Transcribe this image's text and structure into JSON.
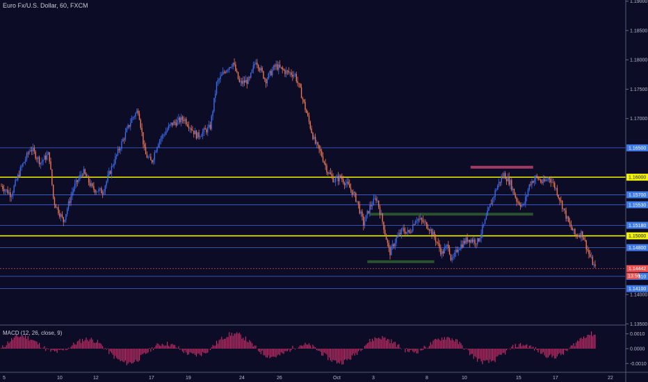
{
  "header": {
    "title": "Euro Fx/U.S. Dollar, 60, FXCM"
  },
  "macd": {
    "label": "MACD (12, 26, close, 9)",
    "tick_labels": [
      "0.0010",
      "0.0000",
      "-0.0010"
    ],
    "tick_values": [
      0.001,
      0.0,
      -0.001
    ],
    "color": "#d0306a"
  },
  "price_axis": {
    "tick_labels": [
      "1.19000",
      "1.18500",
      "1.18000",
      "1.17500",
      "1.17000",
      "1.14000",
      "1.13500"
    ],
    "tick_values": [
      1.19,
      1.185,
      1.18,
      1.175,
      1.17,
      1.14,
      1.135
    ],
    "range": [
      1.1348,
      1.1902
    ]
  },
  "levels": [
    {
      "label": "1.16500",
      "value": 1.165,
      "kind": "blue"
    },
    {
      "label": "1.16000",
      "value": 1.16,
      "kind": "yellow"
    },
    {
      "label": "1.15700",
      "value": 1.157,
      "kind": "blue"
    },
    {
      "label": "1.15530",
      "value": 1.1553,
      "kind": "blue"
    },
    {
      "label": "1.15180",
      "value": 1.1518,
      "kind": "blue"
    },
    {
      "label": "1.15000",
      "value": 1.15,
      "kind": "yellow"
    },
    {
      "label": "1.14800",
      "value": 1.148,
      "kind": "blue"
    },
    {
      "label": "1.14310",
      "value": 1.1431,
      "kind": "blue"
    },
    {
      "label": "1.14100",
      "value": 1.141,
      "kind": "blue"
    }
  ],
  "current_price": {
    "label": "1.14442",
    "value": 1.14442,
    "countdown": "13:56"
  },
  "time_axis": {
    "labels": [
      "5",
      "10",
      "12",
      "17",
      "19",
      "24",
      "26",
      "Oct",
      "3",
      "8",
      "10",
      "15",
      "17",
      "22"
    ]
  },
  "zones": [
    {
      "kind": "resistance",
      "x_start": 0.752,
      "x_end": 0.852,
      "price": 1.1617
    },
    {
      "kind": "support",
      "x_start": 0.591,
      "x_end": 0.852,
      "price": 1.1537
    },
    {
      "kind": "support",
      "x_start": 0.587,
      "x_end": 0.694,
      "price": 1.1456
    }
  ],
  "colors": {
    "background": "#0c0c27",
    "up_candle": "#3d6df0",
    "down_candle": "#f07850",
    "blue_line": "#4d79ff",
    "yellow_line": "#f5f500",
    "resistance_zone": "#b0406a",
    "support_zone": "#2e5a2e",
    "axis_text": "#b8bcc8",
    "current_price": "#f05050"
  },
  "chart_data": {
    "type": "candlestick",
    "symbol": "Euro Fx/U.S. Dollar",
    "interval": "60",
    "source": "FXCM",
    "ylim": [
      1.1348,
      1.1902
    ],
    "price_path": [
      [
        0.0,
        1.1585
      ],
      [
        0.015,
        1.157
      ],
      [
        0.03,
        1.1615
      ],
      [
        0.045,
        1.165
      ],
      [
        0.06,
        1.1625
      ],
      [
        0.073,
        1.164
      ],
      [
        0.08,
        1.156
      ],
      [
        0.095,
        1.1525
      ],
      [
        0.11,
        1.158
      ],
      [
        0.125,
        1.161
      ],
      [
        0.14,
        1.158
      ],
      [
        0.155,
        1.1575
      ],
      [
        0.17,
        1.162
      ],
      [
        0.185,
        1.166
      ],
      [
        0.2,
        1.17
      ],
      [
        0.21,
        1.1715
      ],
      [
        0.22,
        1.164
      ],
      [
        0.23,
        1.1625
      ],
      [
        0.24,
        1.166
      ],
      [
        0.26,
        1.169
      ],
      [
        0.28,
        1.17
      ],
      [
        0.3,
        1.167
      ],
      [
        0.32,
        1.1685
      ],
      [
        0.33,
        1.176
      ],
      [
        0.345,
        1.1785
      ],
      [
        0.355,
        1.1795
      ],
      [
        0.365,
        1.176
      ],
      [
        0.38,
        1.1765
      ],
      [
        0.39,
        1.18
      ],
      [
        0.405,
        1.1765
      ],
      [
        0.42,
        1.179
      ],
      [
        0.435,
        1.178
      ],
      [
        0.45,
        1.1775
      ],
      [
        0.46,
        1.174
      ],
      [
        0.47,
        1.17
      ],
      [
        0.48,
        1.166
      ],
      [
        0.49,
        1.164
      ],
      [
        0.5,
        1.161
      ],
      [
        0.51,
        1.1595
      ],
      [
        0.52,
        1.16
      ],
      [
        0.535,
        1.158
      ],
      [
        0.545,
        1.156
      ],
      [
        0.555,
        1.152
      ],
      [
        0.565,
        1.155
      ],
      [
        0.575,
        1.1565
      ],
      [
        0.585,
        1.152
      ],
      [
        0.595,
        1.147
      ],
      [
        0.605,
        1.1495
      ],
      [
        0.615,
        1.151
      ],
      [
        0.625,
        1.1505
      ],
      [
        0.635,
        1.153
      ],
      [
        0.645,
        1.1525
      ],
      [
        0.655,
        1.1515
      ],
      [
        0.665,
        1.1495
      ],
      [
        0.675,
        1.147
      ],
      [
        0.685,
        1.1485
      ],
      [
        0.69,
        1.1455
      ],
      [
        0.7,
        1.148
      ],
      [
        0.715,
        1.1495
      ],
      [
        0.73,
        1.149
      ],
      [
        0.74,
        1.152
      ],
      [
        0.75,
        1.1555
      ],
      [
        0.76,
        1.1585
      ],
      [
        0.77,
        1.1605
      ],
      [
        0.78,
        1.159
      ],
      [
        0.79,
        1.156
      ],
      [
        0.8,
        1.155
      ],
      [
        0.81,
        1.159
      ],
      [
        0.82,
        1.16
      ],
      [
        0.83,
        1.159
      ],
      [
        0.84,
        1.16
      ],
      [
        0.85,
        1.158
      ],
      [
        0.86,
        1.155
      ],
      [
        0.87,
        1.152
      ],
      [
        0.88,
        1.15
      ],
      [
        0.89,
        1.1505
      ],
      [
        0.9,
        1.147
      ],
      [
        0.91,
        1.1444
      ]
    ],
    "macd_histogram_note": "oscillates around 0.0000 within ±0.0010"
  }
}
